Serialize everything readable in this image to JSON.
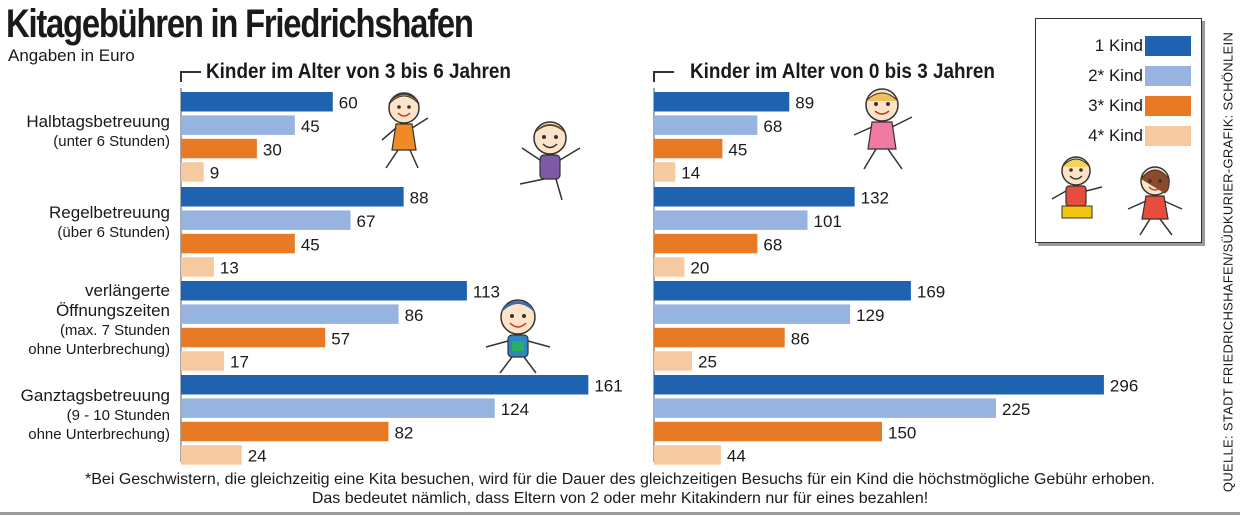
{
  "header": {
    "title": "Kitagebühren in Friedrichshafen",
    "subtitle": "Angaben in Euro"
  },
  "groups": [
    {
      "title": "Kinder im Alter von 3 bis 6 Jahren"
    },
    {
      "title": "Kinder im Alter von 0 bis 3 Jahren"
    }
  ],
  "categories": [
    {
      "lines": [
        "Halbtagsbetreuung"
      ],
      "sub_lines": [
        "(unter 6 Stunden)"
      ]
    },
    {
      "lines": [
        "Regelbetreuung"
      ],
      "sub_lines": [
        "(über 6 Stunden)"
      ]
    },
    {
      "lines": [
        "verlängerte",
        "Öffnungszeiten"
      ],
      "sub_lines": [
        "(max. 7 Stunden",
        "ohne Unterbrechung)"
      ]
    },
    {
      "lines": [
        "Ganztagsbetreuung"
      ],
      "sub_lines": [
        "(9 - 10 Stunden",
        "ohne Unterbrechung)"
      ]
    }
  ],
  "legend": [
    {
      "label": "1 Kind",
      "color": "#1f63b0"
    },
    {
      "label": "2* Kind",
      "color": "#97b3df"
    },
    {
      "label": "3* Kind",
      "color": "#e87a26"
    },
    {
      "label": "4* Kind",
      "color": "#f7c9a0"
    }
  ],
  "chart_data": [
    {
      "type": "bar",
      "orientation": "horizontal",
      "title": "Kinder im Alter von 3 bis 6 Jahren",
      "categories": [
        "Halbtagsbetreuung (unter 6 Stunden)",
        "Regelbetreuung (über 6 Stunden)",
        "verlängerte Öffnungszeiten (max. 7 Stunden ohne Unterbrechung)",
        "Ganztagsbetreuung (9 - 10 Stunden ohne Unterbrechung)"
      ],
      "series": [
        {
          "name": "1 Kind",
          "values": [
            60,
            88,
            113,
            161
          ]
        },
        {
          "name": "2* Kind",
          "values": [
            45,
            67,
            86,
            124
          ]
        },
        {
          "name": "3* Kind",
          "values": [
            30,
            45,
            57,
            82
          ]
        },
        {
          "name": "4* Kind",
          "values": [
            9,
            13,
            17,
            24
          ]
        }
      ],
      "data_labels": true,
      "grid": false,
      "legend_position": "top-right"
    },
    {
      "type": "bar",
      "orientation": "horizontal",
      "title": "Kinder im Alter von 0 bis 3 Jahren",
      "categories": [
        "Halbtagsbetreuung (unter 6 Stunden)",
        "Regelbetreuung (über 6 Stunden)",
        "verlängerte Öffnungszeiten (max. 7 Stunden ohne Unterbrechung)",
        "Ganztagsbetreuung (9 - 10 Stunden ohne Unterbrechung)"
      ],
      "series": [
        {
          "name": "1 Kind",
          "values": [
            89,
            132,
            169,
            296
          ]
        },
        {
          "name": "2* Kind",
          "values": [
            68,
            101,
            129,
            225
          ]
        },
        {
          "name": "3* Kind",
          "values": [
            45,
            68,
            86,
            150
          ]
        },
        {
          "name": "4* Kind",
          "values": [
            14,
            20,
            25,
            44
          ]
        }
      ],
      "data_labels": true,
      "grid": false,
      "legend_position": "top-right"
    }
  ],
  "footnote": {
    "line1": "*Bei Geschwistern, die gleichzeitig eine Kita besuchen, wird für die Dauer des gleichzeitigen Besuchs für ein Kind die höchstmögliche Gebühr erhoben.",
    "line2": "Das bedeutet nämlich, dass Eltern von 2 oder mehr Kitakindern nur für eines bezahlen!"
  },
  "source": "QUELLE: STADT FRIEDRICHSHAFEN/SÜDKURIER-GRAFIK: SCHÖNLEIN"
}
